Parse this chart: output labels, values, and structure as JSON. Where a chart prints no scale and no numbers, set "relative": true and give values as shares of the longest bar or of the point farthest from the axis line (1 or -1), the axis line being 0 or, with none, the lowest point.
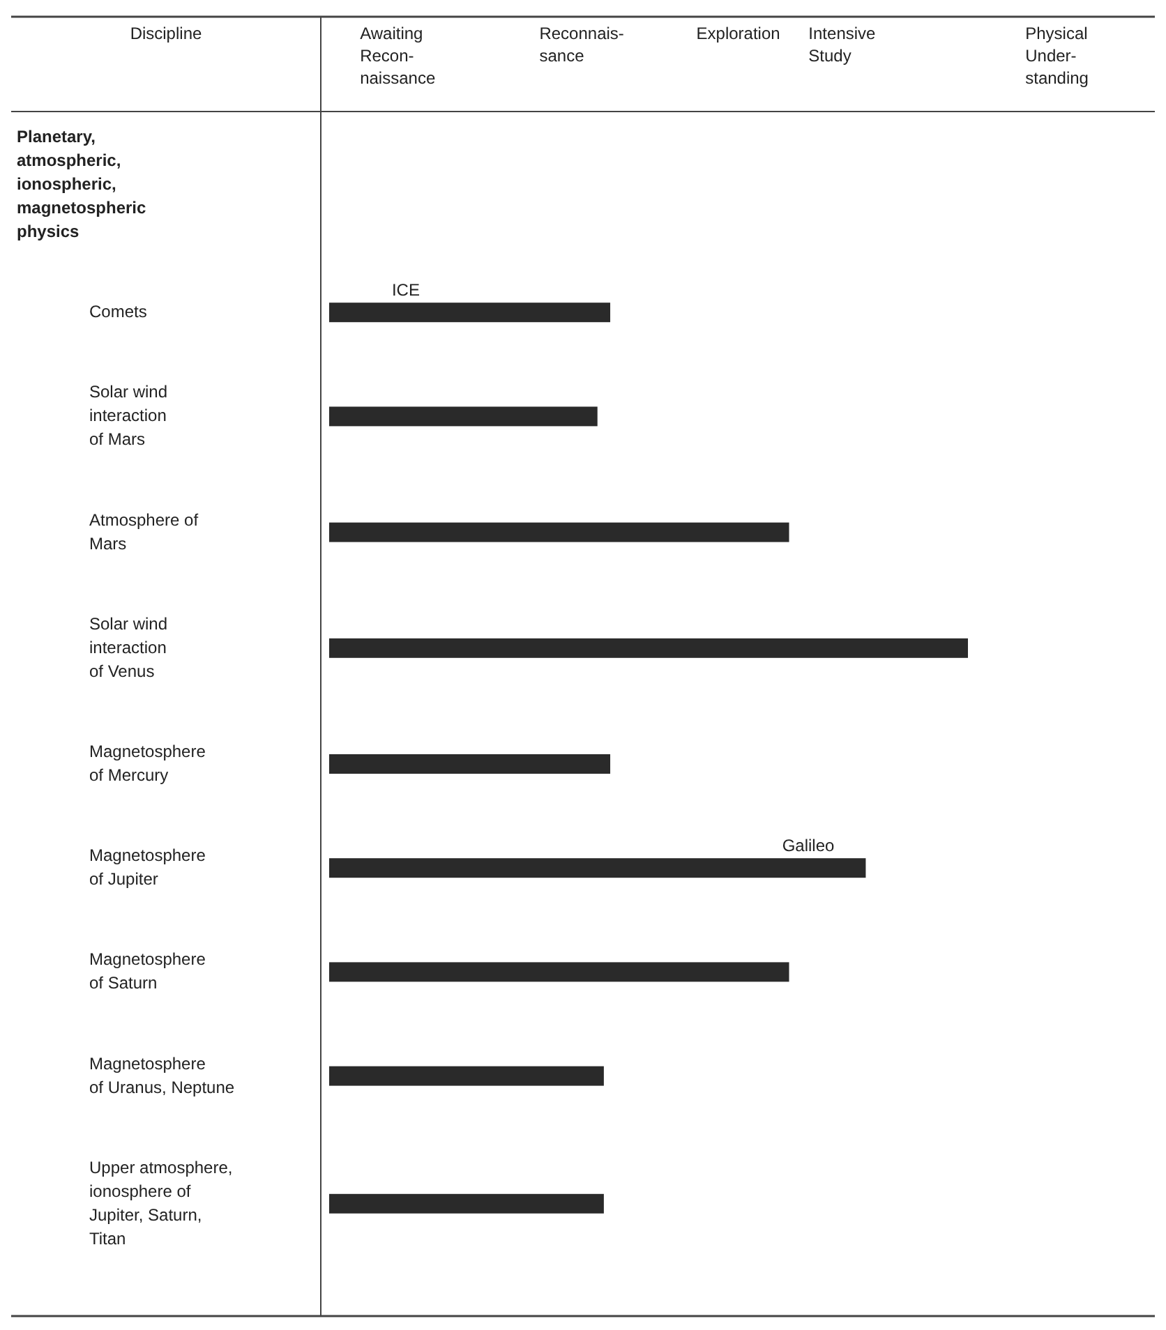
{
  "chart_data": {
    "type": "bar",
    "orientation": "horizontal",
    "relative": true,
    "categories": [
      "Comets",
      "Solar wind\ninteraction\nof Mars",
      "Atmosphere of\nMars",
      "Solar wind\ninteraction\nof Venus",
      "Magnetosphere\nof Mercury",
      "Magnetosphere\nof Jupiter",
      "Magnetosphere\nof Saturn",
      "Magnetosphere\nof Uranus, Neptune",
      "Upper atmosphere,\nionosphere of\nJupiter, Saturn,\nTitan"
    ],
    "values": [
      0.44,
      0.42,
      0.72,
      1,
      0.44,
      0.84,
      0.72,
      0.43,
      0.43
    ],
    "color": "#2a2a2a",
    "annotations": [
      "Discipline",
      "Awaiting\nRecon-\nnaissance",
      "Reconnais-\nsance",
      "Exploration",
      "Intensive\nStudy",
      "Physical\nUnder-\nstanding",
      "Planetary,\natmospheric,\nionospheric,\nmagnetospheric\nphysics",
      "ICE",
      "Galileo"
    ]
  }
}
